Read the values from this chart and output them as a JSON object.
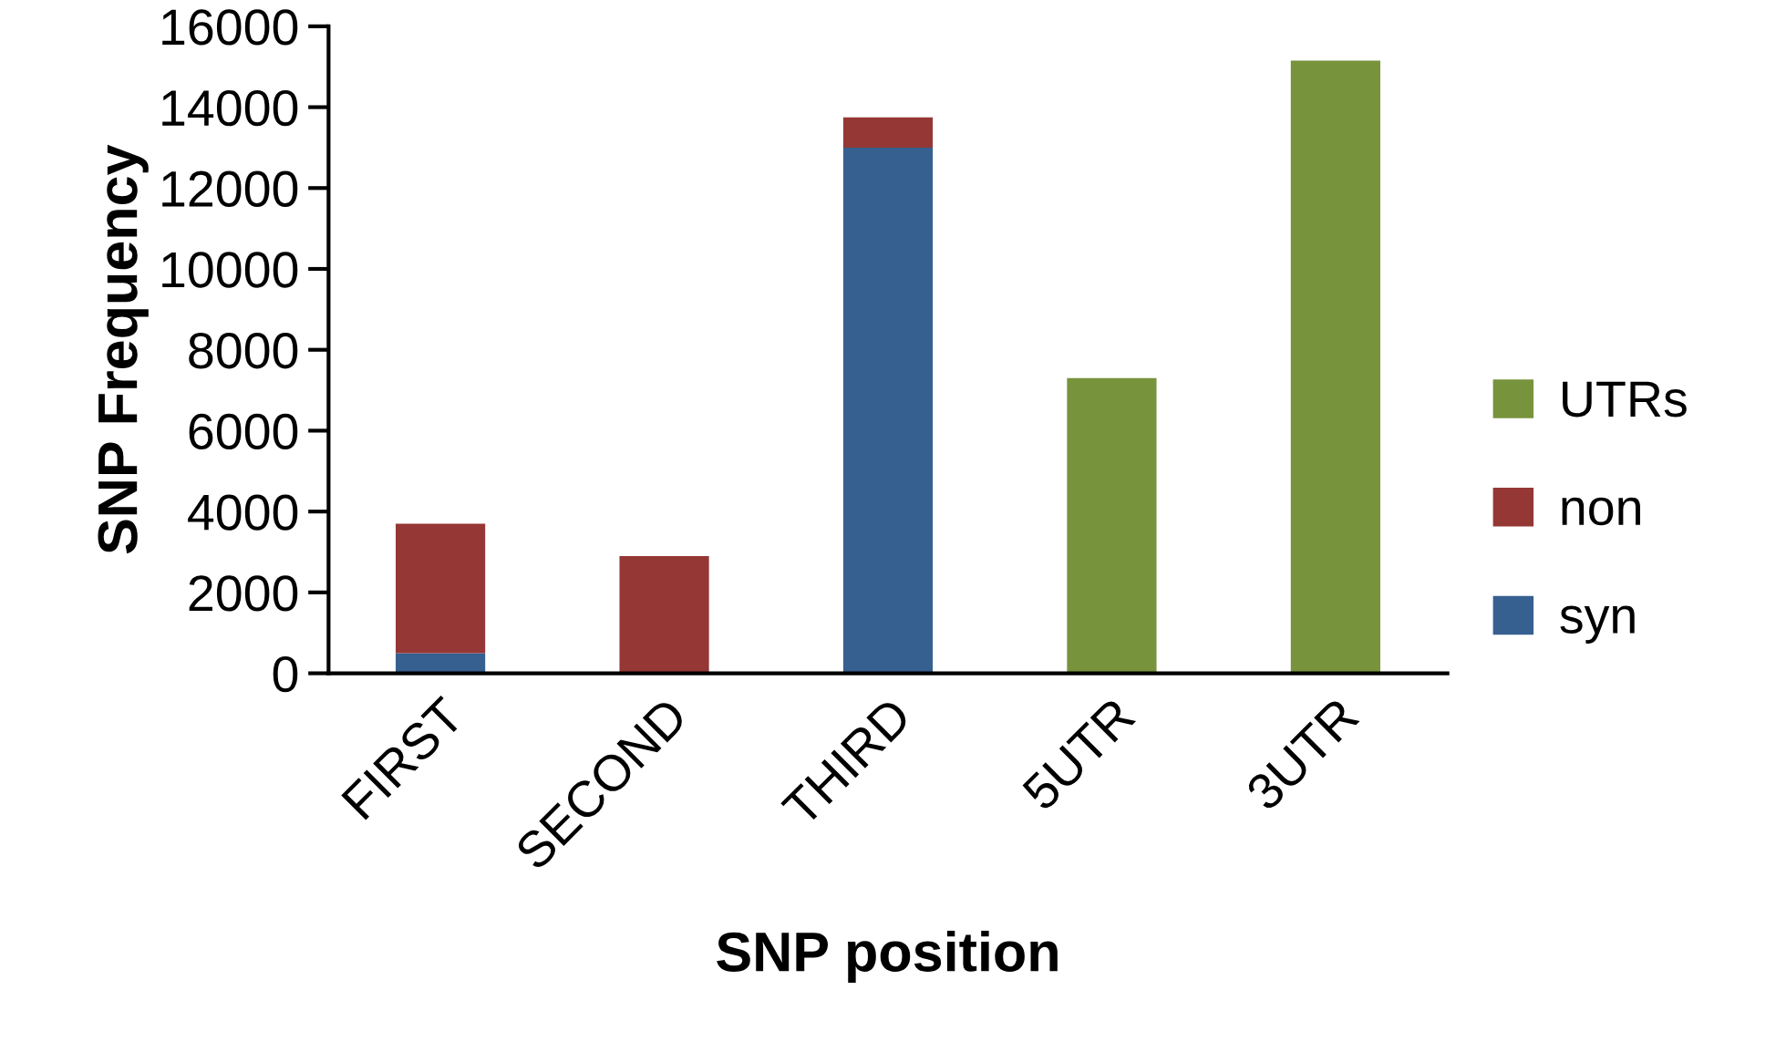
{
  "chart_data": {
    "type": "bar",
    "stacked": true,
    "xlabel": "SNP position",
    "ylabel": "SNP Frequency",
    "categories": [
      "FIRST",
      "SECOND",
      "THIRD",
      "5UTR",
      "3UTR"
    ],
    "series": [
      {
        "name": "syn",
        "color": "#36608f",
        "values": [
          500,
          0,
          13000,
          0,
          0
        ]
      },
      {
        "name": "non",
        "color": "#953735",
        "values": [
          3200,
          2900,
          750,
          0,
          0
        ]
      },
      {
        "name": "UTRs",
        "color": "#77933c",
        "values": [
          0,
          0,
          0,
          7300,
          15150
        ]
      }
    ],
    "ylim": [
      0,
      16000
    ],
    "yticks": [
      0,
      2000,
      4000,
      6000,
      8000,
      10000,
      12000,
      14000,
      16000
    ],
    "grid": false,
    "legend": "right"
  }
}
